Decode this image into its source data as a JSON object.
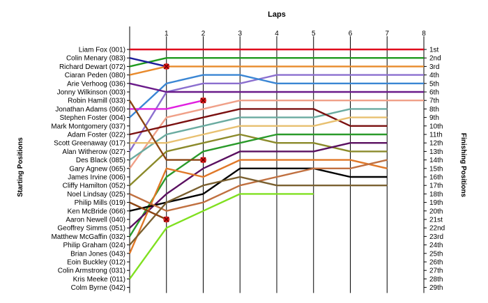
{
  "chart_data": {
    "type": "line",
    "title": "",
    "xlabel": "Laps",
    "ylabel_left": "Starting Positions",
    "ylabel_right": "Finishing Positions",
    "x_ticks": [
      1,
      2,
      3,
      4,
      5,
      6,
      7,
      8
    ],
    "xlim": [
      0,
      8
    ],
    "ylim": [
      1,
      29
    ],
    "starting_grid": [
      "Liam Fox (001)",
      "Colin Menary (083)",
      "Richard Dewart (072)",
      "Ciaran Peden (080)",
      "Arie Verhoog (036)",
      "Jonny Wilkinson (003)",
      "Robin Hamill (033)",
      "Jonathan Adams (060)",
      "Stephen Foster (004)",
      "Mark Montgomery (037)",
      "Adam Foster (022)",
      "Scott Greenaway (017)",
      "Alan Witherow (027)",
      "Des Black (085)",
      "Gary Agnew (065)",
      "James Irvine (006)",
      "Cliffy Hamilton (052)",
      "Noel Lindsay (025)",
      "Philip Mills (019)",
      "Ken McBride (066)",
      "Aaron Newell (040)",
      "Geoffrey Simms (051)",
      "Matthew McGaffin (032)",
      "Philip Graham (024)",
      "Brian Jones (043)",
      "Eoin Buckley (012)",
      "Colin Armstrong (031)",
      "Kris Meeke (011)",
      "Colm Byrne (042)"
    ],
    "finishing_positions": [
      "1st",
      "2nd",
      "3rd",
      "4th",
      "5th",
      "6th",
      "7th",
      "8th",
      "9th",
      "10th",
      "11th",
      "12th",
      "13th",
      "14th",
      "15th",
      "16th",
      "17th",
      "18th",
      "19th",
      "20th",
      "21st",
      "22nd",
      "23rd",
      "24th",
      "25th",
      "26th",
      "27th",
      "28th",
      "29th"
    ],
    "series": [
      {
        "color": "#e0001b",
        "x": [
          0,
          1,
          2,
          3,
          4,
          5,
          6,
          7,
          8
        ],
        "positions": [
          1,
          1,
          1,
          1,
          1,
          1,
          1,
          1,
          1
        ]
      },
      {
        "color": "#1f9a1f",
        "x": [
          0,
          1,
          2,
          3,
          4,
          5,
          6,
          7,
          8
        ],
        "positions": [
          3,
          2,
          2,
          2,
          2,
          2,
          2,
          2,
          2
        ]
      },
      {
        "color": "#1e1e9a",
        "x": [
          0,
          1
        ],
        "positions": [
          2,
          3
        ],
        "retired_at": 1
      },
      {
        "color": "#e88a2c",
        "x": [
          0,
          1,
          2,
          3,
          4,
          5,
          6,
          7,
          8
        ],
        "positions": [
          4,
          3,
          3,
          3,
          3,
          3,
          3,
          3,
          3
        ]
      },
      {
        "color": "#8b6fcf",
        "x": [
          0,
          1,
          2,
          3,
          4,
          5,
          6,
          7,
          8
        ],
        "positions": [
          13,
          6,
          5,
          5,
          4,
          4,
          4,
          4,
          4
        ]
      },
      {
        "color": "#3a86d4",
        "x": [
          0,
          1,
          2,
          3,
          4,
          5,
          6,
          7,
          8
        ],
        "positions": [
          9,
          5,
          4,
          4,
          5,
          5,
          5,
          5,
          5
        ]
      },
      {
        "color": "#6a1b8a",
        "x": [
          0,
          1,
          2,
          3,
          4,
          5,
          6,
          7,
          8
        ],
        "positions": [
          5,
          6,
          6,
          6,
          6,
          6,
          6,
          6,
          6
        ]
      },
      {
        "color": "#f0a088",
        "x": [
          0,
          1,
          2,
          3,
          4,
          5,
          6,
          7,
          8
        ],
        "positions": [
          15,
          9,
          8,
          7,
          7,
          7,
          7,
          7,
          7
        ]
      },
      {
        "color": "#e020e0",
        "x": [
          0,
          1,
          2
        ],
        "positions": [
          8,
          8,
          7
        ],
        "retired_at": 2
      },
      {
        "color": "#6aaba0",
        "x": [
          0,
          1,
          2,
          3,
          4,
          5,
          6,
          7
        ],
        "positions": [
          14,
          11,
          10,
          9,
          9,
          9,
          8,
          8
        ]
      },
      {
        "color": "#7a1010",
        "x": [
          0,
          1,
          2,
          3,
          4,
          5,
          6,
          7
        ],
        "positions": [
          11,
          10,
          9,
          8,
          8,
          8,
          10,
          10
        ]
      },
      {
        "color": "#e8c070",
        "x": [
          0,
          1,
          2,
          3,
          4,
          5,
          6,
          7
        ],
        "positions": [
          12,
          12,
          11,
          10,
          10,
          10,
          9,
          9
        ]
      },
      {
        "color": "#8b8a2a",
        "x": [
          0,
          1,
          2,
          3,
          4,
          5,
          6,
          7
        ],
        "positions": [
          17,
          13,
          12,
          11,
          12,
          12,
          13,
          13
        ]
      },
      {
        "color": "#2a9a2a",
        "x": [
          0,
          1,
          2,
          3,
          4,
          5,
          6,
          7
        ],
        "positions": [
          23,
          16,
          13,
          12,
          11,
          11,
          11,
          11
        ]
      },
      {
        "color": "#5a1060",
        "x": [
          0,
          1,
          2,
          3,
          4,
          5,
          6,
          7
        ],
        "positions": [
          22,
          18,
          15,
          13,
          13,
          13,
          12,
          12
        ]
      },
      {
        "color": "#e07828",
        "x": [
          0,
          1,
          2,
          3,
          4,
          5,
          6,
          7
        ],
        "positions": [
          25,
          15,
          16,
          14,
          14,
          14,
          14,
          15
        ]
      },
      {
        "color": "#000000",
        "x": [
          0,
          1,
          2,
          3,
          4,
          5,
          6,
          7
        ],
        "positions": [
          20,
          19,
          18,
          15,
          15,
          15,
          16,
          16
        ]
      },
      {
        "color": "#c07040",
        "x": [
          0,
          1,
          2,
          3,
          4,
          5,
          6,
          7
        ],
        "positions": [
          18,
          20,
          19,
          17,
          16,
          15,
          15,
          14
        ]
      },
      {
        "color": "#7a6030",
        "x": [
          0,
          1,
          2,
          3,
          4,
          5,
          6,
          7
        ],
        "positions": [
          24,
          19,
          17,
          16,
          17,
          17,
          17,
          17
        ]
      },
      {
        "color": "#8b4513",
        "x": [
          0,
          1,
          2
        ],
        "positions": [
          7,
          14,
          14
        ],
        "retired_at": 2
      },
      {
        "color": "#8b4513",
        "x": [
          0,
          1
        ],
        "positions": [
          19,
          21
        ],
        "retired_at": 1
      },
      {
        "color": "#80e020",
        "x": [
          0,
          1,
          2,
          3,
          4,
          5
        ],
        "positions": [
          28,
          22,
          20,
          18,
          18,
          18
        ]
      }
    ]
  }
}
